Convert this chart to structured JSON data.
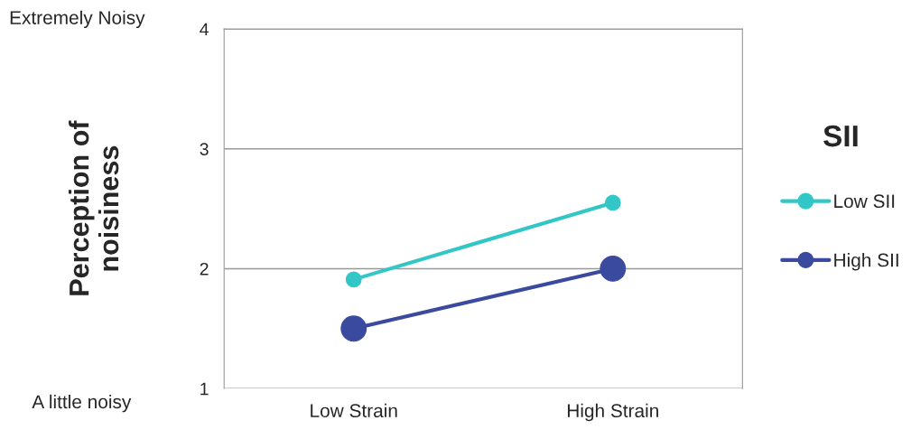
{
  "chart_data": {
    "type": "line",
    "ylabel": "Perception of\nnoisiness",
    "legend_title": "SII",
    "categories": [
      "Low Strain",
      "High Strain"
    ],
    "series": [
      {
        "name": "Low SII",
        "color": "#33c6c6",
        "values": [
          1.91,
          2.55
        ]
      },
      {
        "name": "High SII",
        "color": "#3a4a9e",
        "values": [
          1.5,
          2.0
        ]
      }
    ],
    "ylim": [
      1,
      4
    ],
    "yticks": [
      1,
      2,
      3,
      4
    ],
    "grid": "y",
    "legend": "right",
    "marker": "circle",
    "annotations": [
      "Extremely Noisy",
      "A little noisy"
    ]
  }
}
